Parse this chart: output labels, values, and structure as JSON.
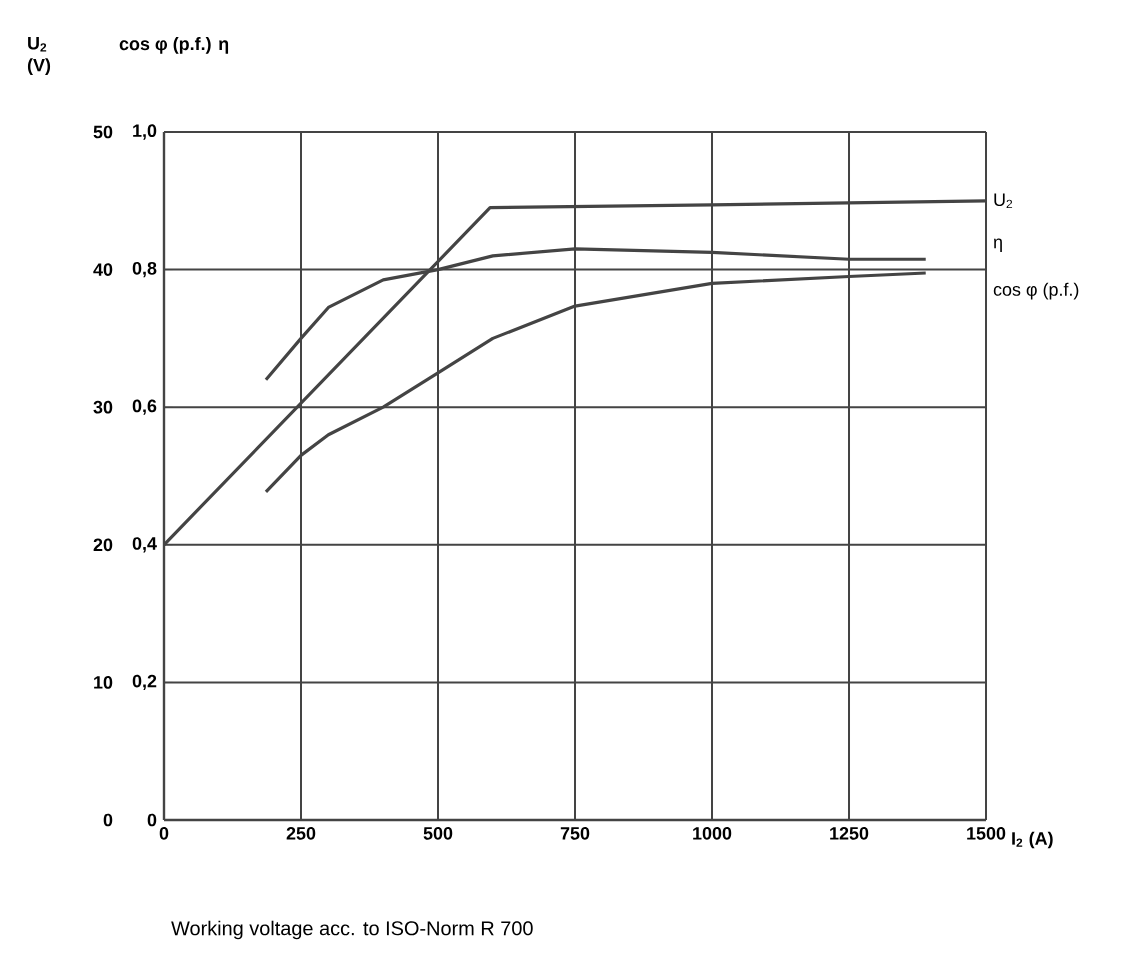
{
  "chart_data": {
    "type": "line",
    "xlabel": "I$_{2}$ (A)",
    "ylabel": "U$_{2}$ (V)",
    "y2label": "cos φ (p.f.) η",
    "annotations": [
      "Working voltage acc. to ISO-Norm R 700"
    ],
    "xlim": [
      0,
      1500
    ],
    "xticks": [
      0,
      250,
      500,
      750,
      1000,
      1250,
      1500
    ],
    "ylim": [
      0,
      50
    ],
    "yticks": [
      0,
      10,
      20,
      30,
      40,
      50
    ],
    "y2lim": [
      0,
      1.0
    ],
    "y2ticks": [
      0,
      {
        "value": 0.2,
        "label": "0,2"
      },
      {
        "value": 0.4,
        "label": "0,4"
      },
      {
        "value": 0.6,
        "label": "0,6"
      },
      {
        "value": 0.8,
        "label": "0,8"
      },
      {
        "value": 1.0,
        "label": "1,0"
      }
    ],
    "grid": true,
    "line_style": "solid",
    "marker": "none",
    "series": [
      {
        "name": "U$_{2}$",
        "color": "#444444",
        "x": [
          0,
          595,
          1000,
          1500
        ],
        "values": [
          20,
          44.5,
          44.7,
          45
        ]
      },
      {
        "name": "η",
        "color": "#444444",
        "axis": "y2",
        "x": [
          186,
          250,
          300,
          400,
          500,
          600,
          750,
          1000,
          1250,
          1390
        ],
        "values": [
          0.64,
          0.7,
          0.745,
          0.785,
          0.8,
          0.82,
          0.83,
          0.825,
          0.815,
          0.815
        ]
      },
      {
        "name": "cos φ (p.f.)",
        "color": "#444444",
        "axis": "y2",
        "x": [
          186,
          250,
          300,
          400,
          500,
          600,
          750,
          1000,
          1250,
          1390
        ],
        "values": [
          0.477,
          0.53,
          0.56,
          0.6,
          0.65,
          0.7,
          0.747,
          0.78,
          0.79,
          0.795
        ]
      }
    ]
  }
}
